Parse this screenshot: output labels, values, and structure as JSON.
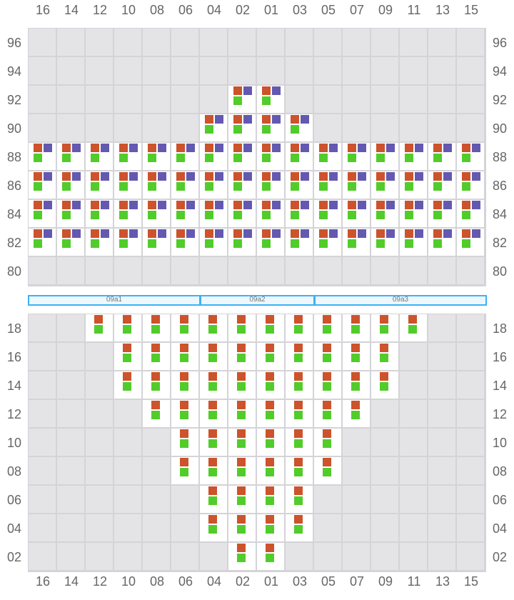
{
  "columns": [
    "16",
    "14",
    "12",
    "10",
    "08",
    "06",
    "04",
    "02",
    "01",
    "03",
    "05",
    "07",
    "09",
    "11",
    "13",
    "15"
  ],
  "colors": {
    "orange": "#cc532b",
    "purple": "#6459b0",
    "green": "#52cc2a",
    "empty": "#e4e4e7",
    "band": "#3ab4f2"
  },
  "upper": {
    "rows": [
      {
        "label": "96",
        "occupied": []
      },
      {
        "label": "94",
        "occupied": []
      },
      {
        "label": "92",
        "occupied": [
          "02",
          "01"
        ]
      },
      {
        "label": "90",
        "occupied": [
          "04",
          "02",
          "01",
          "03"
        ]
      },
      {
        "label": "88",
        "occupied": "all"
      },
      {
        "label": "86",
        "occupied": "all"
      },
      {
        "label": "84",
        "occupied": "all"
      },
      {
        "label": "82",
        "occupied": "all"
      },
      {
        "label": "80",
        "occupied": []
      }
    ],
    "markers": [
      "orange",
      "purple",
      "green"
    ]
  },
  "bands": [
    {
      "label": "09a1",
      "from": "16",
      "to": "06"
    },
    {
      "label": "09a2",
      "from": "04",
      "to": "03"
    },
    {
      "label": "09a3",
      "from": "05",
      "to": "15"
    }
  ],
  "lower": {
    "rows": [
      {
        "label": "18",
        "occupied": [
          "12",
          "10",
          "08",
          "06",
          "04",
          "02",
          "01",
          "03",
          "05",
          "07",
          "09",
          "11"
        ]
      },
      {
        "label": "16",
        "occupied": [
          "10",
          "08",
          "06",
          "04",
          "02",
          "01",
          "03",
          "05",
          "07",
          "09"
        ]
      },
      {
        "label": "14",
        "occupied": [
          "10",
          "08",
          "06",
          "04",
          "02",
          "01",
          "03",
          "05",
          "07",
          "09"
        ]
      },
      {
        "label": "12",
        "occupied": [
          "08",
          "06",
          "04",
          "02",
          "01",
          "03",
          "05",
          "07"
        ]
      },
      {
        "label": "10",
        "occupied": [
          "06",
          "04",
          "02",
          "01",
          "03",
          "05"
        ]
      },
      {
        "label": "08",
        "occupied": [
          "06",
          "04",
          "02",
          "01",
          "03",
          "05"
        ]
      },
      {
        "label": "06",
        "occupied": [
          "04",
          "02",
          "01",
          "03"
        ]
      },
      {
        "label": "04",
        "occupied": [
          "04",
          "02",
          "01",
          "03"
        ]
      },
      {
        "label": "02",
        "occupied": [
          "02",
          "01"
        ]
      }
    ],
    "markers": [
      "orange",
      "green"
    ]
  }
}
